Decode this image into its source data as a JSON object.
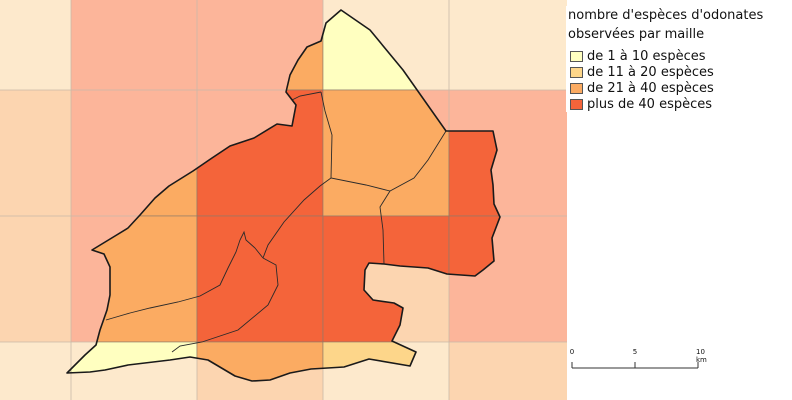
{
  "legend": {
    "title_line1": "nombre d'espèces d'odonates",
    "title_line2": "observées par maille",
    "classes": [
      {
        "label": "de 1 à 10 espèces",
        "color": "#ffffc0"
      },
      {
        "label": "de 11 à 20 espèces",
        "color": "#fdd68a"
      },
      {
        "label": "de 21 à 40 espèces",
        "color": "#fbab62"
      },
      {
        "label": "plus de 40 espèces",
        "color": "#f4643a"
      }
    ]
  },
  "scalebar": {
    "ticks": [
      {
        "label": "0",
        "km": 0
      },
      {
        "label": "5",
        "km": 5
      },
      {
        "label": "10 km",
        "km": 10
      }
    ]
  },
  "grid": {
    "background_colors": {
      "light": "#fde9cc",
      "mid": "#fcd5b0",
      "strong": "#fcb59a"
    }
  }
}
